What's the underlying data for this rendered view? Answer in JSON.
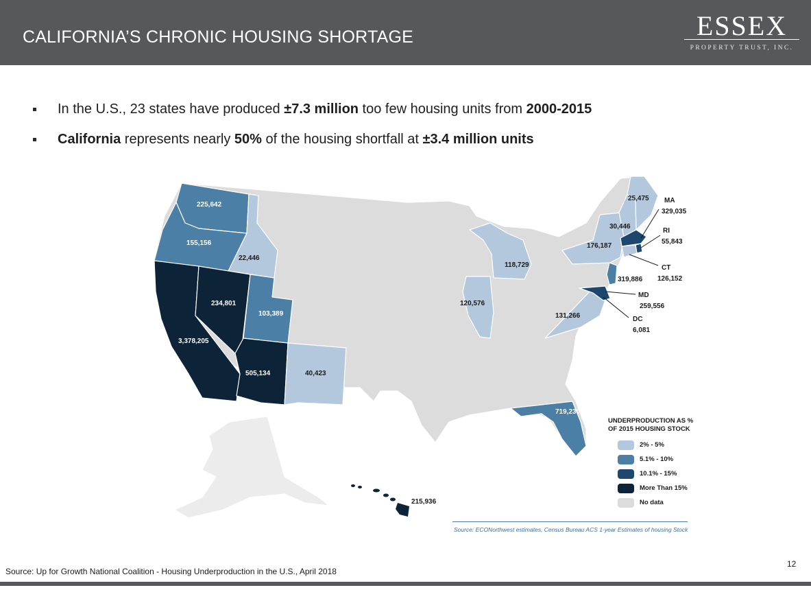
{
  "header": {
    "title": "CALIFORNIA’S CHRONIC HOUSING SHORTAGE",
    "logo_word": "ESSEX",
    "logo_sub": "PROPERTY TRUST, INC."
  },
  "bullets": [
    {
      "pre": "In the U.S., 23 states have produced ",
      "b1": "±7.3 million",
      "mid": " too few housing units from ",
      "b2": "2000-2015",
      "post": ""
    },
    {
      "pre": "",
      "b1": "California",
      "mid": " represents nearly ",
      "b2": "50%",
      "post": " of the housing shortfall at ",
      "b3": "±3.4 million units"
    }
  ],
  "colors": {
    "no_data": "#dcdcdc",
    "c2_5": "#b3c8dd",
    "c5_10": "#4b7fa5",
    "c10_15": "#1e476e",
    "c15": "#0c2338",
    "alaska": "#ececec",
    "border": "#ffffff"
  },
  "map_labels": {
    "WA": "225,642",
    "OR": "155,156",
    "ID": "22,446",
    "NV": "234,801",
    "UT": "103,389",
    "CA": "3,378,205",
    "AZ": "505,134",
    "NM": "40,423",
    "IL": "120,576",
    "MI": "118,729",
    "FL": "719,230",
    "HI": "215,936",
    "VA": "131,266",
    "NJ": "319,886",
    "NY": "176,187",
    "VT_NH": "30,446",
    "ME": "25,475",
    "MA_abbr": "MA",
    "MA": "329,035",
    "RI_abbr": "RI",
    "RI": "55,843",
    "CT_abbr": "CT",
    "CT": "126,152",
    "MD_abbr": "MD",
    "MD": "259,556",
    "DC_abbr": "DC",
    "DC": "6,081"
  },
  "legend": {
    "title": "UNDERPRODUCTION AS % OF 2015 HOUSING STOCK",
    "items": [
      {
        "label": "2% - 5%",
        "color": "#b3c8dd"
      },
      {
        "label": "5.1% - 10%",
        "color": "#4b7fa5"
      },
      {
        "label": "10.1% - 15%",
        "color": "#1e476e"
      },
      {
        "label": "More Than 15%",
        "color": "#0c2338"
      },
      {
        "label": "No data",
        "color": "#dcdcdc"
      }
    ]
  },
  "map_source": "Source: ECONorthwest estimates, Census Bureau ACS 1-year Estimates of housing Stock",
  "page_number": "12",
  "footer_source": "Source: Up for Growth National Coalition - Housing Underproduction in the U.S., April 2018"
}
